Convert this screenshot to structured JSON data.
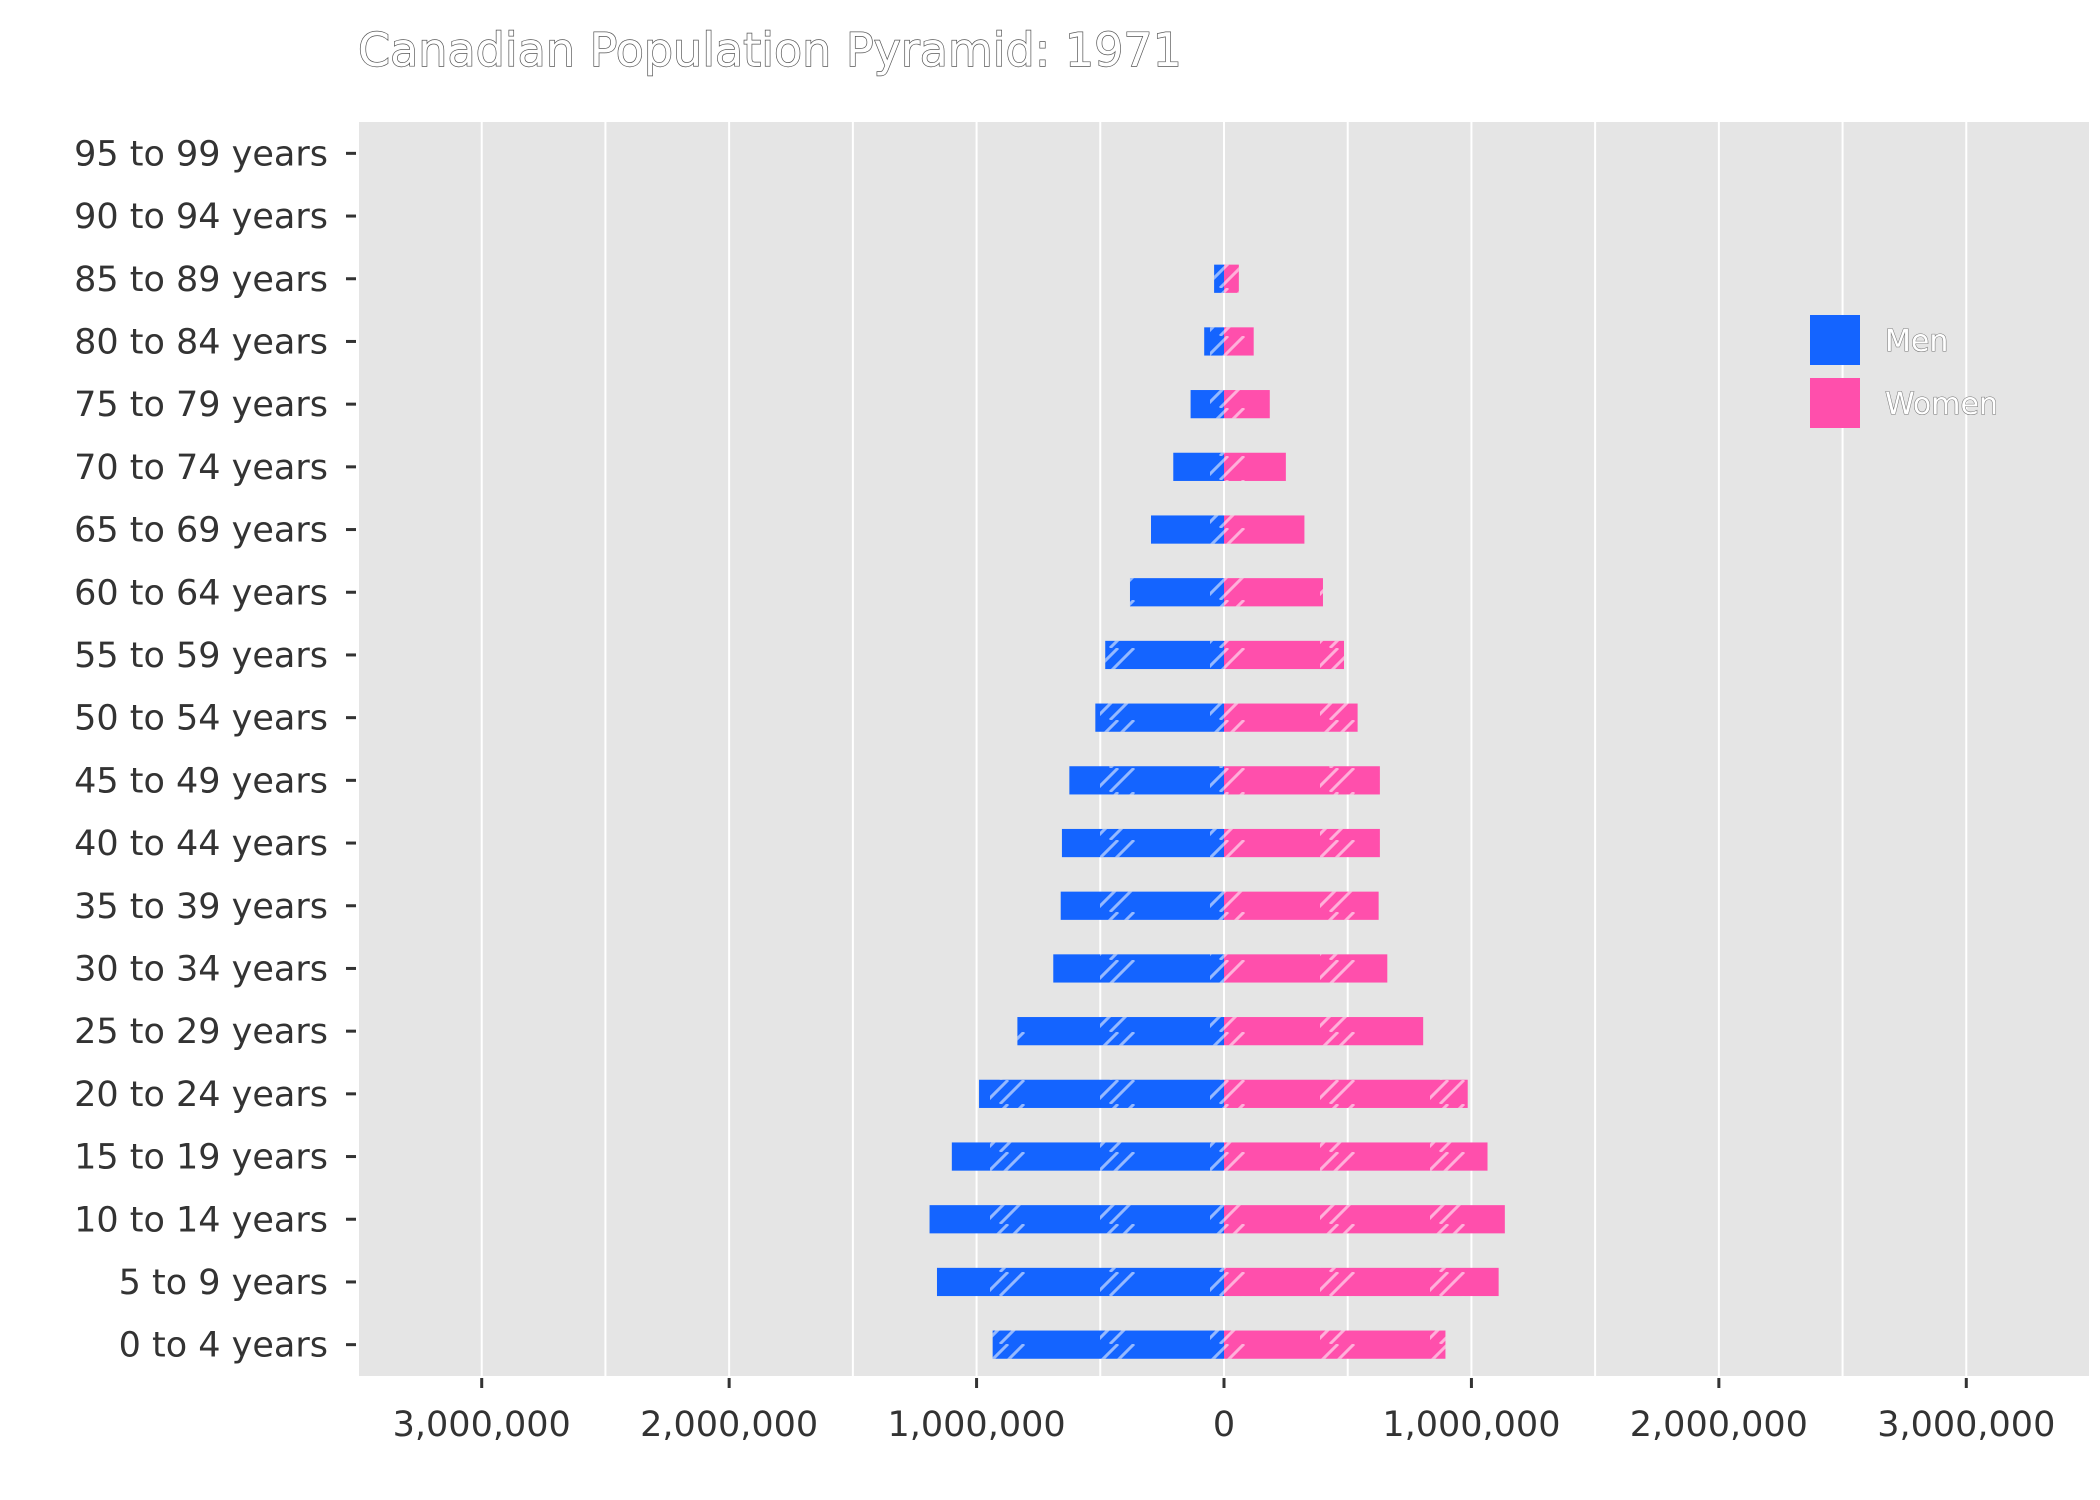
{
  "chart_data": {
    "type": "bar",
    "orientation": "horizontal",
    "title": "Canadian Population Pyramid: 1971",
    "xlabel": "",
    "ylabel": "",
    "xlim": [
      -3500000,
      3500000
    ],
    "xticks": [
      -3000000,
      -2000000,
      -1000000,
      0,
      1000000,
      2000000,
      3000000
    ],
    "xtick_labels": [
      "3,000,000",
      "2,000,000",
      "1,000,000",
      "0",
      "1,000,000",
      "2,000,000",
      "3,000,000"
    ],
    "grid": true,
    "legend_position": "top-right",
    "categories": [
      "0 to 4 years",
      "5 to 9 years",
      "10 to 14 years",
      "15 to 19 years",
      "20 to 24 years",
      "25 to 29 years",
      "30 to 34 years",
      "35 to 39 years",
      "40 to 44 years",
      "45 to 49 years",
      "50 to 54 years",
      "55 to 59 years",
      "60 to 64 years",
      "65 to 69 years",
      "70 to 74 years",
      "75 to 79 years",
      "80 to 84 years",
      "85 to 89 years",
      "90 to 94 years",
      "95 to 99 years"
    ],
    "series": [
      {
        "name": "Men",
        "color": "#1464ff",
        "values": [
          935000,
          1160000,
          1190000,
          1100000,
          990000,
          835000,
          690000,
          660000,
          655000,
          625000,
          520000,
          480000,
          380000,
          295000,
          205000,
          135000,
          80000,
          40000,
          0,
          0
        ]
      },
      {
        "name": "Women",
        "color": "#ff4fac",
        "values": [
          895000,
          1110000,
          1135000,
          1065000,
          985000,
          805000,
          660000,
          625000,
          630000,
          630000,
          540000,
          485000,
          400000,
          325000,
          250000,
          185000,
          120000,
          60000,
          0,
          0
        ]
      }
    ]
  }
}
